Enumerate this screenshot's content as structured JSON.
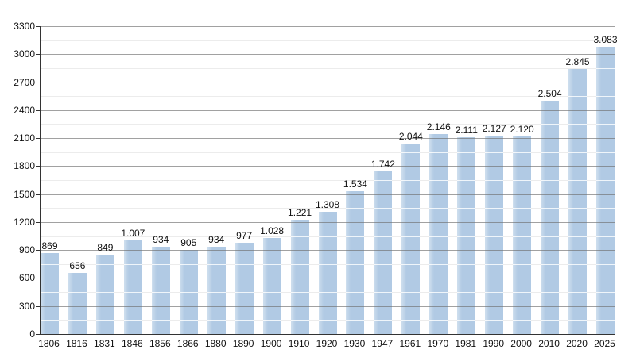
{
  "chart_data": {
    "type": "bar",
    "title": "",
    "xlabel": "",
    "ylabel": "",
    "categories": [
      "1806",
      "1816",
      "1831",
      "1846",
      "1856",
      "1866",
      "1880",
      "1890",
      "1900",
      "1910",
      "1920",
      "1930",
      "1947",
      "1961",
      "1970",
      "1981",
      "1990",
      "2000",
      "2010",
      "2020",
      "2025"
    ],
    "values": [
      869,
      656,
      849,
      1007,
      934,
      905,
      934,
      977,
      1028,
      1221,
      1308,
      1534,
      1742,
      2044,
      2146,
      2111,
      2127,
      2120,
      2504,
      2845,
      3083
    ],
    "value_labels": [
      "869",
      "656",
      "849",
      "1.007",
      "934",
      "905",
      "934",
      "977",
      "1.028",
      "1.221",
      "1.308",
      "1.534",
      "1.742",
      "2.044",
      "2.146",
      "2.111",
      "2.127",
      "2.120",
      "2.504",
      "2.845",
      "3.083"
    ],
    "ylim": [
      0,
      3300
    ],
    "y_major_step": 300,
    "y_minor_step": 150,
    "y_tick_labels": [
      "0",
      "300",
      "600",
      "900",
      "1200",
      "1500",
      "1800",
      "2100",
      "2400",
      "2700",
      "3000",
      "3300"
    ],
    "grid": "horizontal major and minor gridlines, minor lines appear white over bars",
    "legend_position": "none"
  },
  "colors": {
    "background": "#ffffff",
    "bar_fill": "#b1cae4",
    "bar_edge_light": "#cfdfee",
    "major_grid": "rgba(110,110,110,0.65)",
    "minor_grid": "#ececec",
    "minor_grid_on_bar": "rgba(255,255,255,0.8)",
    "axis": "#333333",
    "label_text": "#111111"
  }
}
